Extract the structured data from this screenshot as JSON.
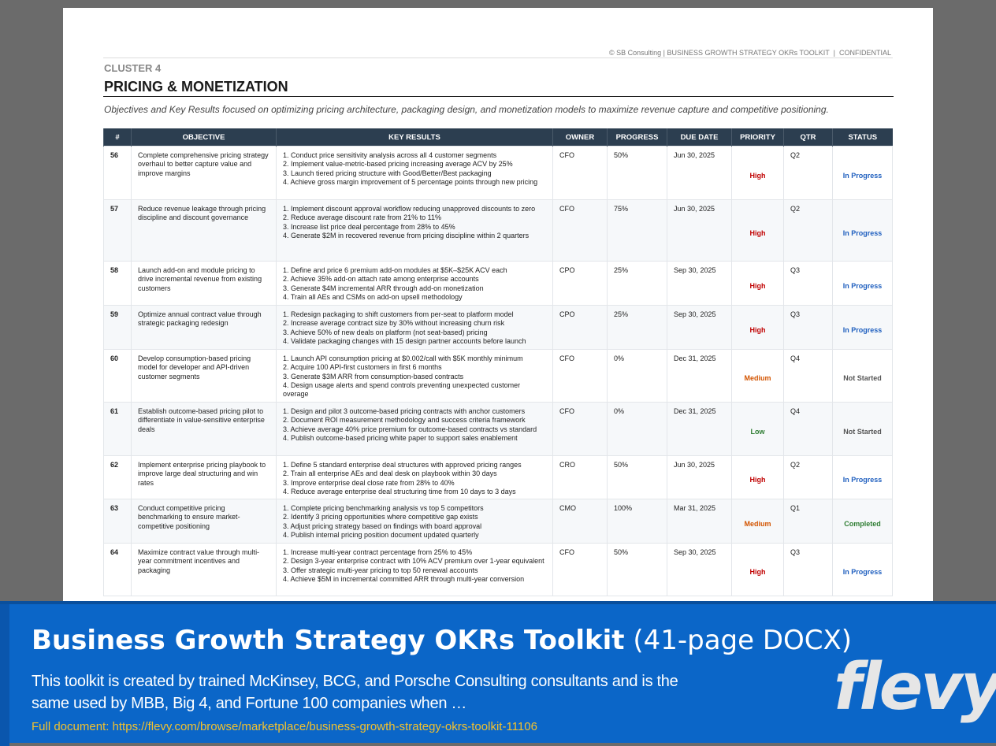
{
  "header": {
    "copyright": "© SB Consulting | BUSINESS GROWTH STRATEGY OKRs TOOLKIT  |  CONFIDENTIAL",
    "cluster": "CLUSTER 4",
    "title": "PRICING & MONETIZATION",
    "description": "Objectives and Key Results focused on optimizing pricing architecture, packaging design, and monetization models to maximize revenue capture and competitive positioning."
  },
  "table": {
    "columns": [
      "#",
      "OBJECTIVE",
      "KEY RESULTS",
      "OWNER",
      "PROGRESS",
      "DUE DATE",
      "PRIORITY",
      "QTR",
      "STATUS"
    ],
    "rows": [
      {
        "num": "56",
        "objective": "Complete comprehensive pricing strategy overhaul to better capture value and improve margins",
        "key_results": [
          "1. Conduct price sensitivity analysis across all 4 customer segments",
          "2. Implement value-metric-based pricing increasing average ACV by 25%",
          "3. Launch tiered pricing structure with Good/Better/Best packaging",
          "4. Achieve gross margin improvement of 5 percentage points through new pricing"
        ],
        "owner": "CFO",
        "progress": "50%",
        "due_date": "Jun 30, 2025",
        "priority": "High",
        "priority_color": "#c00000",
        "qtr": "Q2",
        "status": "In Progress",
        "status_color": "#1f5fbf"
      },
      {
        "num": "57",
        "objective": "Reduce revenue leakage through pricing discipline and discount governance",
        "key_results": [
          "1. Implement discount approval workflow reducing unapproved discounts to zero",
          "2. Reduce average discount rate from 21% to 11%",
          "3. Increase list price deal percentage from 28% to 45%",
          "4. Generate $2M in recovered revenue from pricing discipline within 2 quarters"
        ],
        "owner": "CFO",
        "progress": "75%",
        "due_date": "Jun 30, 2025",
        "priority": "High",
        "priority_color": "#c00000",
        "qtr": "Q2",
        "status": "In Progress",
        "status_color": "#1f5fbf"
      },
      {
        "num": "58",
        "objective": "Launch add-on and module pricing to drive incremental revenue from existing customers",
        "key_results": [
          "1. Define and price 6 premium add-on modules at $5K–$25K ACV each",
          "2. Achieve 35% add-on attach rate among enterprise accounts",
          "3. Generate $4M incremental ARR through add-on monetization",
          "4. Train all AEs and CSMs on add-on upsell methodology"
        ],
        "owner": "CPO",
        "progress": "25%",
        "due_date": "Sep 30, 2025",
        "priority": "High",
        "priority_color": "#c00000",
        "qtr": "Q3",
        "status": "In Progress",
        "status_color": "#1f5fbf"
      },
      {
        "num": "59",
        "objective": "Optimize annual contract value through strategic packaging redesign",
        "key_results": [
          "1. Redesign packaging to shift customers from per-seat to platform model",
          "2. Increase average contract size by 30% without increasing churn risk",
          "3. Achieve 50% of new deals on platform (not seat-based) pricing",
          "4. Validate packaging changes with 15 design partner accounts before launch"
        ],
        "owner": "CPO",
        "progress": "25%",
        "due_date": "Sep 30, 2025",
        "priority": "High",
        "priority_color": "#c00000",
        "qtr": "Q3",
        "status": "In Progress",
        "status_color": "#1f5fbf"
      },
      {
        "num": "60",
        "objective": "Develop consumption-based pricing model for developer and API-driven customer segments",
        "key_results": [
          "1. Launch API consumption pricing at $0.002/call with $5K monthly minimum",
          "2. Acquire 100 API-first customers in first 6 months",
          "3. Generate $3M ARR from consumption-based contracts",
          "4. Design usage alerts and spend controls preventing unexpected customer overage"
        ],
        "owner": "CFO",
        "progress": "0%",
        "due_date": "Dec 31, 2025",
        "priority": "Medium",
        "priority_color": "#d35400",
        "qtr": "Q4",
        "status": "Not Started",
        "status_color": "#555555"
      },
      {
        "num": "61",
        "objective": "Establish outcome-based pricing pilot to differentiate in value-sensitive enterprise deals",
        "key_results": [
          "1. Design and pilot 3 outcome-based pricing contracts with anchor customers",
          "2. Document ROI measurement methodology and success criteria framework",
          "3. Achieve average 40% price premium for outcome-based contracts vs standard",
          "4. Publish outcome-based pricing white paper to support sales enablement"
        ],
        "owner": "CFO",
        "progress": "0%",
        "due_date": "Dec 31, 2025",
        "priority": "Low",
        "priority_color": "#2e7d32",
        "qtr": "Q4",
        "status": "Not Started",
        "status_color": "#555555"
      },
      {
        "num": "62",
        "objective": "Implement enterprise pricing playbook to improve large deal structuring and win rates",
        "key_results": [
          "1. Define 5 standard enterprise deal structures with approved pricing ranges",
          "2. Train all enterprise AEs and deal desk on playbook within 30 days",
          "3. Improve enterprise deal close rate from 28% to 40%",
          "4. Reduce average enterprise deal structuring time from 10 days to 3 days"
        ],
        "owner": "CRO",
        "progress": "50%",
        "due_date": "Jun 30, 2025",
        "priority": "High",
        "priority_color": "#c00000",
        "qtr": "Q2",
        "status": "In Progress",
        "status_color": "#1f5fbf"
      },
      {
        "num": "63",
        "objective": "Conduct competitive pricing benchmarking to ensure market-competitive positioning",
        "key_results": [
          "1. Complete pricing benchmarking analysis vs top 5 competitors",
          "2. Identify 3 pricing opportunities where competitive gap exists",
          "3. Adjust pricing strategy based on findings with board approval",
          "4. Publish internal pricing position document updated quarterly"
        ],
        "owner": "CMO",
        "progress": "100%",
        "due_date": "Mar 31, 2025",
        "priority": "Medium",
        "priority_color": "#d35400",
        "qtr": "Q1",
        "status": "Completed",
        "status_color": "#2e7d32"
      },
      {
        "num": "64",
        "objective": "Maximize contract value through multi-year commitment incentives and packaging",
        "key_results": [
          "1. Increase multi-year contract percentage from 25% to 45%",
          "2. Design 3-year enterprise contract with 10% ACV premium over 1-year equivalent",
          "3. Offer strategic multi-year pricing to top 50 renewal accounts",
          "4. Achieve $5M in incremental committed ARR through multi-year conversion"
        ],
        "owner": "CFO",
        "progress": "50%",
        "due_date": "Sep 30, 2025",
        "priority": "High",
        "priority_color": "#c00000",
        "qtr": "Q3",
        "status": "In Progress",
        "status_color": "#1f5fbf"
      }
    ]
  },
  "banner": {
    "title": "Business Growth Strategy OKRs Toolkit",
    "subtitle": "(41-page DOCX)",
    "description": "This toolkit is created by trained McKinsey, BCG, and Porsche Consulting consultants and is the same used by MBB, Big 4, and Fortune 100 companies when …",
    "link": "Full document: https://flevy.com/browse/marketplace/business-growth-strategy-okrs-toolkit-11106",
    "logo": "flevy"
  }
}
